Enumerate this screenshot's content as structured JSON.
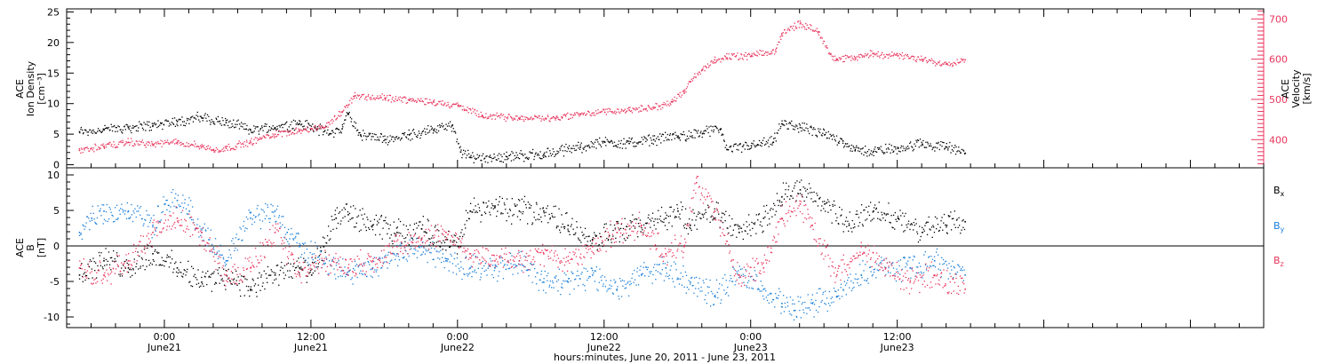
{
  "colors": {
    "black": "#000000",
    "pink": "#e8355d",
    "blue": "#1a7fd9"
  },
  "xaxis": {
    "label": "hours:minutes, June 20, 2011 - June 23, 2011",
    "range_hours": [
      -8,
      90
    ],
    "ticks": [
      {
        "hour": 0,
        "time": "0:00",
        "date": "June21"
      },
      {
        "hour": 12,
        "time": "12:00",
        "date": "June21"
      },
      {
        "hour": 24,
        "time": "0:00",
        "date": "June22"
      },
      {
        "hour": 36,
        "time": "12:00",
        "date": "June22"
      },
      {
        "hour": 48,
        "time": "0:00",
        "date": "June23"
      },
      {
        "hour": 60,
        "time": "12:00",
        "date": "June23"
      }
    ]
  },
  "chart_data": [
    {
      "type": "scatter",
      "title": "",
      "ylabel_left": [
        "ACE",
        "Ion Density",
        "[cm⁻³]"
      ],
      "ylabel_right": [
        "ACE",
        "Velocity",
        "[km/s]"
      ],
      "ylim_left": [
        -0.5,
        25.5
      ],
      "ylim_right": [
        330,
        725
      ],
      "yticks_left": [
        0,
        5,
        10,
        15,
        20,
        25
      ],
      "yticks_right": [
        400,
        500,
        600,
        700
      ],
      "series": [
        {
          "name": "",
          "axis": "left",
          "color": "#000000",
          "x_hours": [
            -7,
            -5,
            -3,
            -1,
            1,
            3,
            5,
            7,
            9,
            11,
            12.5,
            13.5,
            14.5,
            15,
            16,
            18,
            20,
            22,
            23.5,
            24.2,
            25,
            28,
            31,
            34,
            36,
            38,
            40,
            42,
            44,
            45.5,
            46,
            48,
            49.8,
            50.5,
            52,
            54,
            55.5,
            56.5,
            58,
            60,
            62,
            64,
            65.5
          ],
          "y": [
            5.5,
            5.8,
            6.2,
            6.5,
            7.2,
            7.8,
            7.0,
            5.8,
            6.2,
            6.8,
            6.0,
            5.2,
            6.0,
            8.5,
            5.0,
            4.2,
            5.0,
            5.8,
            6.5,
            2.2,
            1.3,
            1.4,
            1.8,
            3.0,
            3.8,
            3.6,
            4.2,
            4.8,
            5.2,
            6.0,
            2.6,
            3.2,
            3.8,
            6.8,
            6.2,
            5.0,
            4.0,
            2.4,
            2.3,
            2.8,
            3.5,
            3.0,
            2.0
          ]
        },
        {
          "name": "",
          "axis": "right",
          "color": "#e8355d",
          "x_hours": [
            -7,
            -5,
            -3,
            -1,
            1,
            3,
            4,
            5,
            7,
            9,
            11,
            13,
            14.5,
            15.5,
            18,
            20,
            22,
            24,
            26,
            29,
            32,
            34,
            36,
            38,
            40,
            41.5,
            42.5,
            43,
            44,
            45,
            46,
            48,
            50,
            50.5,
            52,
            53.5,
            54.5,
            55,
            56.5,
            58,
            60,
            62,
            64,
            65.5
          ],
          "y": [
            375,
            385,
            395,
            390,
            395,
            385,
            375,
            380,
            395,
            415,
            425,
            430,
            470,
            510,
            505,
            500,
            495,
            485,
            460,
            455,
            455,
            465,
            470,
            475,
            480,
            495,
            520,
            545,
            575,
            600,
            605,
            610,
            620,
            665,
            690,
            670,
            615,
            600,
            605,
            615,
            610,
            600,
            590,
            600
          ]
        }
      ]
    },
    {
      "type": "scatter",
      "title": "",
      "ylabel_left": [
        "ACE",
        "B",
        "[nT]"
      ],
      "ylim": [
        -11.5,
        11
      ],
      "yticks": [
        -10,
        -5,
        0,
        5,
        10
      ],
      "zero_line": true,
      "legend_position": "right",
      "series": [
        {
          "name": "Bx",
          "label_main": "B",
          "label_sub": "x",
          "color": "#000000",
          "x_hours": [
            -7,
            -5,
            -3,
            -1,
            1,
            3,
            5,
            7,
            9,
            11,
            12,
            13,
            14,
            15,
            17,
            19,
            21,
            23,
            24,
            25,
            27,
            29,
            31,
            33,
            35,
            37,
            39,
            41,
            42,
            43,
            45,
            47,
            49,
            50.5,
            52,
            54,
            56,
            58,
            60,
            62,
            64,
            65.5
          ],
          "y": [
            -4,
            -2,
            -3,
            -1,
            -3,
            -5,
            -4,
            -6,
            -4,
            -3,
            -4,
            0,
            4,
            4.5,
            3,
            2,
            2.5,
            1,
            0,
            5,
            5.5,
            5,
            5,
            3,
            1,
            2,
            3,
            4,
            5,
            3,
            5,
            2,
            4,
            7,
            8,
            6,
            3,
            5,
            4,
            2,
            3,
            3.5
          ]
        },
        {
          "name": "By",
          "label_main": "B",
          "label_sub": "y",
          "color": "#1a7fd9",
          "x_hours": [
            -7,
            -6,
            -5,
            -3,
            -1,
            0,
            1,
            2,
            3,
            5,
            7,
            9,
            10,
            11,
            13,
            15,
            17,
            19,
            21,
            23,
            25,
            27,
            29,
            31,
            33,
            35,
            37,
            39,
            41,
            43,
            45,
            47,
            49,
            50.5,
            51.5,
            53,
            55,
            57,
            59,
            61,
            63,
            65.5
          ],
          "y": [
            2,
            4,
            5,
            5,
            3,
            6,
            6.5,
            5,
            2,
            -2,
            4,
            5,
            2,
            0,
            -2,
            -4,
            -3,
            -1,
            0,
            -2,
            -3,
            -3,
            -2,
            -5,
            -5,
            -4,
            -6,
            -4,
            -3,
            -5,
            -7,
            -4,
            -6,
            -8,
            -9,
            -8,
            -7,
            -4,
            -3,
            -3,
            -2,
            -4
          ]
        },
        {
          "name": "Bz",
          "label_main": "B",
          "label_sub": "z",
          "color": "#e8355d",
          "x_hours": [
            -7,
            -5,
            -3,
            -1,
            1,
            3,
            5,
            7,
            9,
            11,
            13,
            15,
            17,
            19,
            21,
            23,
            25,
            27,
            29,
            31,
            33,
            35,
            37,
            39,
            41,
            42.5,
            43.5,
            45,
            47,
            49,
            50.5,
            52,
            53,
            55,
            57,
            59,
            61,
            63,
            65.5
          ],
          "y": [
            -3,
            -4,
            -2,
            2,
            4,
            2,
            -4,
            -3,
            2,
            -4,
            -2,
            -3,
            -2,
            0,
            1,
            2,
            -1,
            -2,
            -2,
            -1,
            -2,
            0,
            2,
            3,
            -1,
            0,
            9,
            5,
            -4,
            -3,
            4,
            6,
            3,
            -4,
            0,
            -3,
            -5,
            -4,
            -6
          ]
        }
      ]
    }
  ]
}
